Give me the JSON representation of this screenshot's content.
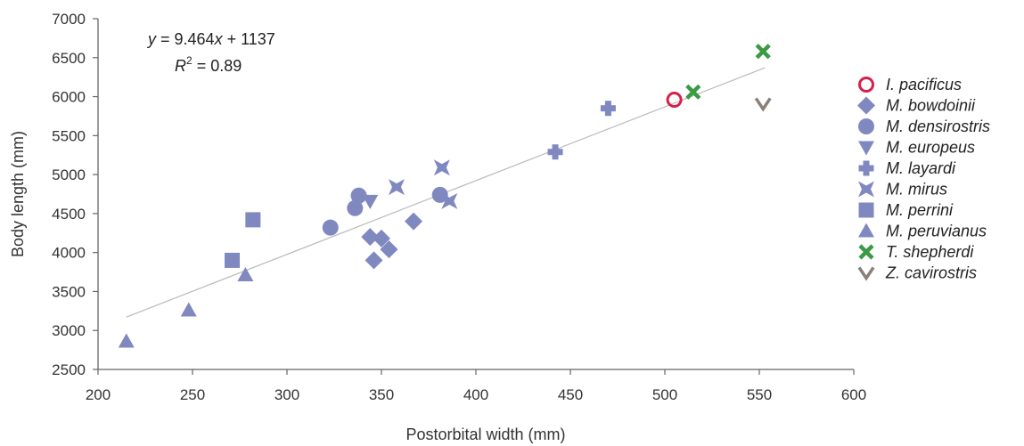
{
  "chart_data": {
    "type": "scatter",
    "xlabel": "Postorbital width (mm)",
    "ylabel": "Body length (mm)",
    "xlim": [
      200,
      600
    ],
    "ylim": [
      2500,
      7000
    ],
    "xticks": [
      200,
      250,
      300,
      350,
      400,
      450,
      500,
      550,
      600
    ],
    "yticks": [
      2500,
      3000,
      3500,
      4000,
      4500,
      5000,
      5500,
      6000,
      6500,
      7000
    ],
    "grid": false,
    "legend_position": "right",
    "annotation": {
      "equation_prefix": "y",
      "equation_mid": " = 9.464",
      "equation_var": "x",
      "equation_suffix": " + 1137",
      "r2_base": "R",
      "r2_exp": "2",
      "r2_value": " = 0.89"
    },
    "trendline": {
      "slope": 9.464,
      "intercept": 1137,
      "x_range": [
        215,
        553
      ],
      "color": "#bbbbbb"
    },
    "series": [
      {
        "name": "I. pacificus",
        "marker": "ring",
        "color": "#d6204b",
        "points": [
          [
            505,
            5960
          ]
        ]
      },
      {
        "name": "M. bowdoinii",
        "marker": "diamond",
        "color": "#8088c0",
        "points": [
          [
            344,
            4200
          ],
          [
            346,
            3900
          ],
          [
            350,
            4180
          ],
          [
            354,
            4040
          ],
          [
            367,
            4400
          ]
        ]
      },
      {
        "name": "M. densirostris",
        "marker": "circle",
        "color": "#8088c0",
        "points": [
          [
            323,
            4320
          ],
          [
            336,
            4570
          ],
          [
            338,
            4730
          ],
          [
            381,
            4740
          ]
        ]
      },
      {
        "name": "M. europeus",
        "marker": "triangle-down",
        "color": "#8088c0",
        "points": [
          [
            344,
            4660
          ]
        ]
      },
      {
        "name": "M. layardi",
        "marker": "plus",
        "color": "#8088c0",
        "points": [
          [
            442,
            5290
          ],
          [
            470,
            5850
          ]
        ]
      },
      {
        "name": "M. mirus",
        "marker": "bowtie",
        "color": "#8088c0",
        "points": [
          [
            358,
            4840
          ],
          [
            382,
            5090
          ],
          [
            386,
            4660
          ]
        ]
      },
      {
        "name": "M. perrini",
        "marker": "square",
        "color": "#8088c0",
        "points": [
          [
            271,
            3900
          ],
          [
            282,
            4420
          ]
        ]
      },
      {
        "name": "M. peruvianus",
        "marker": "triangle-up",
        "color": "#8088c0",
        "points": [
          [
            215,
            2860
          ],
          [
            248,
            3260
          ],
          [
            278,
            3710
          ]
        ]
      },
      {
        "name": "T. shepherdi",
        "marker": "x",
        "color": "#3a9a45",
        "points": [
          [
            515,
            6060
          ],
          [
            552,
            6580
          ]
        ]
      },
      {
        "name": "Z. cavirostris",
        "marker": "chevron",
        "color": "#8a8079",
        "points": [
          [
            552,
            5910
          ]
        ]
      }
    ]
  }
}
